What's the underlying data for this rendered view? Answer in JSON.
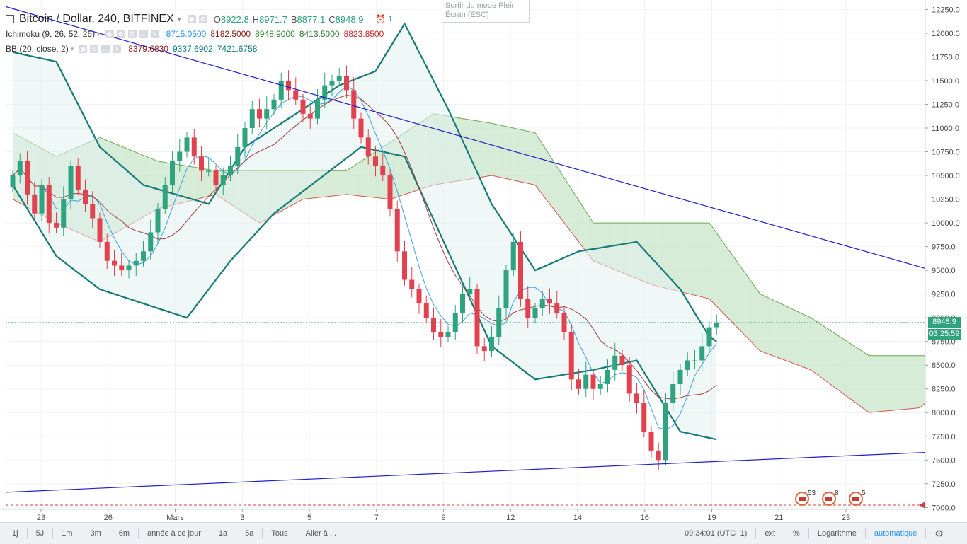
{
  "header": {
    "title": "Bitcoin / Dollar, 240, BITFINEX",
    "ohlc": [
      {
        "key": "O",
        "value": "8922.8"
      },
      {
        "key": "H",
        "value": "8971.7"
      },
      {
        "key": "B",
        "value": "8877.1"
      },
      {
        "key": "C",
        "value": "8948.9"
      }
    ],
    "alerts_count": "1"
  },
  "indicators": [
    {
      "label": "Ichimoku (9, 26, 52, 26)",
      "values": [
        "8715.0500",
        "8182.5000",
        "8948.9000",
        "8413.5000",
        "8823.8500"
      ],
      "colors": [
        "#2196f3",
        "#8b1a1a",
        "#2e8b2e",
        "#2e7d32",
        "#c62828"
      ]
    },
    {
      "label": "BB (20, close, 2)",
      "values": [
        "8379.6830",
        "9337.6902",
        "7421.6758"
      ],
      "colors": [
        "#8b1a1a",
        "#0f7c7c",
        "#0f7c7c"
      ]
    }
  ],
  "tooltip": {
    "text": "Sortir du mode Plein Écran (ESC)"
  },
  "price_tags": {
    "last_price": "8948.9",
    "countdown": "03:25:59"
  },
  "colors": {
    "up": "#2ea37d",
    "down": "#e2424f",
    "bb": "#167a78",
    "trend": "#1f1fcf",
    "cloud_up": "#c8e6c9",
    "cloud_down": "#ffcdd2"
  },
  "event_badges": [
    "53",
    "8",
    "5"
  ],
  "bottom_bar": {
    "ranges": [
      "1j",
      "5J",
      "1m",
      "3m",
      "6m",
      "année à ce jour",
      "1a",
      "5a",
      "Tous",
      "Aller à ..."
    ],
    "time": "09:34:01 (UTC+1)",
    "options": [
      "ext",
      "%",
      "Logarithme",
      "automatique"
    ]
  },
  "chart_data": {
    "type": "candlestick",
    "title": "Bitcoin / Dollar, 240, BITFINEX",
    "y_ticks": [
      7000,
      7250,
      7500,
      7750,
      8000,
      8250,
      8500,
      8750,
      9000,
      9250,
      9500,
      9750,
      10000,
      10250,
      10500,
      10750,
      11000,
      11250,
      11500,
      11750,
      12000,
      12250
    ],
    "ylim": [
      6980,
      12350
    ],
    "x_tick_labels": [
      "23",
      "26",
      "Mars",
      "3",
      "5",
      "7",
      "9",
      "12",
      "14",
      "16",
      "19",
      "21",
      "23"
    ],
    "close_series": [
      10500,
      10650,
      10300,
      10100,
      10400,
      10000,
      9950,
      10250,
      10600,
      10350,
      10200,
      10050,
      9800,
      9600,
      9550,
      9500,
      9550,
      9600,
      9700,
      9900,
      10150,
      10400,
      10650,
      10750,
      10900,
      10700,
      10550,
      10550,
      10400,
      10500,
      10600,
      10800,
      11000,
      11200,
      11100,
      11200,
      11300,
      11500,
      11400,
      11300,
      11150,
      11100,
      11300,
      11450,
      11500,
      11550,
      11400,
      11100,
      10900,
      10700,
      10600,
      10500,
      10150,
      9700,
      9400,
      9300,
      9150,
      9000,
      8850,
      8800,
      8850,
      9050,
      9250,
      9300,
      8700,
      8650,
      8800,
      9100,
      9500,
      9800,
      9200,
      9000,
      9100,
      9200,
      9150,
      9050,
      8850,
      8350,
      8250,
      8400,
      8250,
      8300,
      8450,
      8600,
      8500,
      8200,
      8100,
      7800,
      7600,
      7500,
      8100,
      8300,
      8450,
      8550,
      8550,
      8700,
      8900,
      8950
    ],
    "bollinger_upper_key_points": [
      [
        0,
        11800
      ],
      [
        6,
        11700
      ],
      [
        12,
        10800
      ],
      [
        18,
        10400
      ],
      [
        27,
        10200
      ],
      [
        32,
        10800
      ],
      [
        40,
        11200
      ],
      [
        45,
        11450
      ],
      [
        50,
        11600
      ],
      [
        54,
        12100
      ],
      [
        60,
        11200
      ],
      [
        66,
        10200
      ],
      [
        72,
        9500
      ],
      [
        78,
        9700
      ],
      [
        86,
        9800
      ],
      [
        92,
        9300
      ],
      [
        96,
        8800
      ],
      [
        102,
        8500
      ],
      [
        107,
        8650
      ],
      [
        112,
        9350
      ]
    ],
    "bollinger_lower_key_points": [
      [
        0,
        10400
      ],
      [
        6,
        9650
      ],
      [
        12,
        9300
      ],
      [
        18,
        9150
      ],
      [
        24,
        9000
      ],
      [
        30,
        9600
      ],
      [
        36,
        10100
      ],
      [
        42,
        10450
      ],
      [
        48,
        10800
      ],
      [
        54,
        10700
      ],
      [
        60,
        9700
      ],
      [
        66,
        8700
      ],
      [
        72,
        8350
      ],
      [
        80,
        8450
      ],
      [
        86,
        8550
      ],
      [
        92,
        7800
      ],
      [
        98,
        7700
      ],
      [
        104,
        7450
      ],
      [
        110,
        7300
      ],
      [
        112,
        7400
      ]
    ],
    "cloud_upper_key_points": [
      [
        0,
        10950
      ],
      [
        6,
        10700
      ],
      [
        12,
        10900
      ],
      [
        20,
        10650
      ],
      [
        28,
        10550
      ],
      [
        40,
        10550
      ],
      [
        46,
        10550
      ],
      [
        52,
        10850
      ],
      [
        58,
        11150
      ],
      [
        66,
        11050
      ],
      [
        72,
        10950
      ],
      [
        80,
        10000
      ],
      [
        88,
        10000
      ],
      [
        96,
        10000
      ],
      [
        103,
        9250
      ],
      [
        110,
        9000
      ],
      [
        118,
        8600
      ],
      [
        125,
        8600
      ],
      [
        130,
        8600
      ]
    ],
    "cloud_lower_key_points": [
      [
        0,
        10250
      ],
      [
        6,
        10000
      ],
      [
        12,
        9800
      ],
      [
        20,
        10150
      ],
      [
        28,
        10300
      ],
      [
        34,
        10000
      ],
      [
        40,
        10250
      ],
      [
        46,
        10300
      ],
      [
        52,
        10250
      ],
      [
        58,
        10400
      ],
      [
        66,
        10500
      ],
      [
        72,
        10400
      ],
      [
        80,
        9600
      ],
      [
        88,
        9350
      ],
      [
        96,
        9200
      ],
      [
        103,
        8650
      ],
      [
        110,
        8450
      ],
      [
        118,
        8000
      ],
      [
        125,
        8050
      ],
      [
        130,
        8400
      ]
    ],
    "trendlines": [
      {
        "from": {
          "x_label": "start",
          "y": 12280
        },
        "to": {
          "x_label": "right edge",
          "y": 9520
        }
      },
      {
        "from": {
          "x_label": "start",
          "y": 7160
        },
        "to": {
          "x_label": "right edge",
          "y": 7580
        }
      }
    ],
    "last_price": 8948.9
  }
}
